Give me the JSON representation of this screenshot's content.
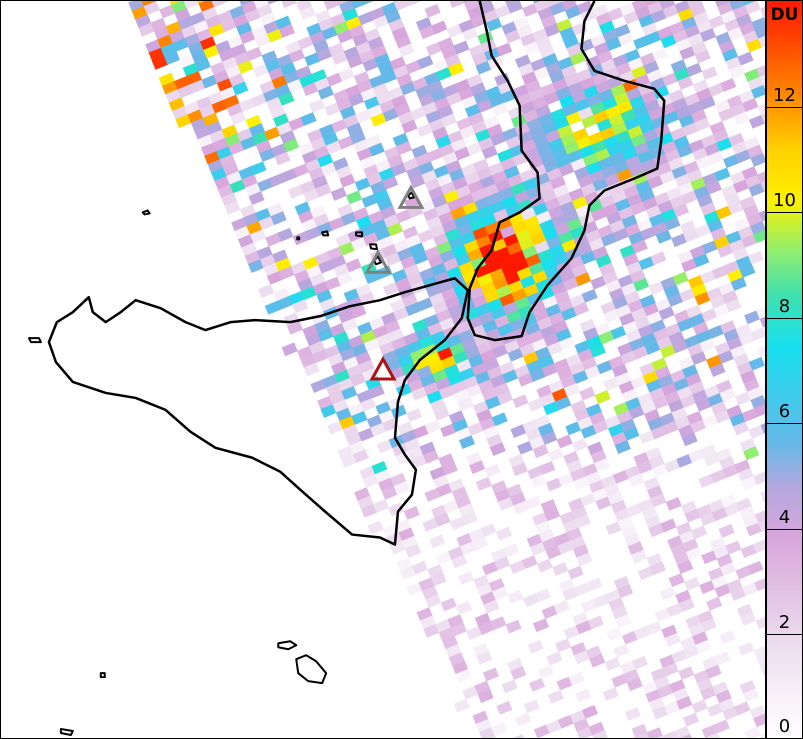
{
  "colorbar": {
    "unit": "DU",
    "ticks": [
      "0",
      "2",
      "4",
      "6",
      "8",
      "10",
      "12"
    ],
    "range": [
      0,
      14
    ]
  },
  "markers": [
    {
      "name": "volcano-marker-1",
      "color": "#808080"
    },
    {
      "name": "volcano-marker-2",
      "color": "#808080"
    },
    {
      "name": "volcano-marker-etna",
      "color": "#b01010"
    }
  ],
  "colors": {
    "coastline": "#000000",
    "high": "#ff1800",
    "low": "#f3e6f4"
  }
}
